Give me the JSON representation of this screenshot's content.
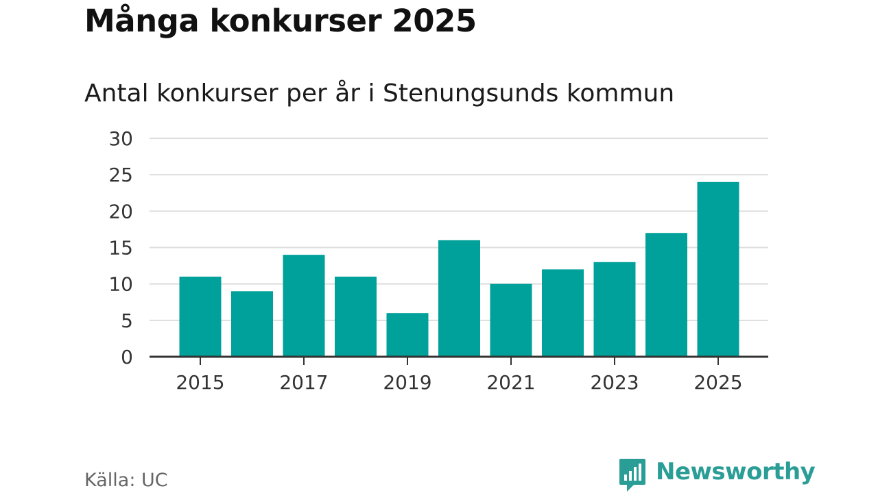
{
  "header": {
    "title": "Många konkurser 2025",
    "subtitle": "Antal konkurser per år i Stenungsunds kommun"
  },
  "footer": {
    "source": "Källa: UC",
    "brand": "Newsworthy",
    "brand_icon": "bar-chart-speech-bubble-icon",
    "brand_color": "#2a9d96"
  },
  "chart_data": {
    "type": "bar",
    "categories": [
      "2015",
      "2016",
      "2017",
      "2018",
      "2019",
      "2020",
      "2021",
      "2022",
      "2023",
      "2024",
      "2025"
    ],
    "values": [
      11,
      9,
      14,
      11,
      6,
      16,
      10,
      12,
      13,
      17,
      24
    ],
    "x_tick_labels": [
      "2015",
      "2017",
      "2019",
      "2021",
      "2023",
      "2025"
    ],
    "y_ticks": [
      0,
      5,
      10,
      15,
      20,
      25,
      30
    ],
    "ylim": [
      0,
      30
    ],
    "xlabel": "",
    "ylabel": "",
    "grid": true,
    "bar_color": "#00a19a",
    "grid_color": "#dddddd",
    "axis_color": "#333333"
  }
}
